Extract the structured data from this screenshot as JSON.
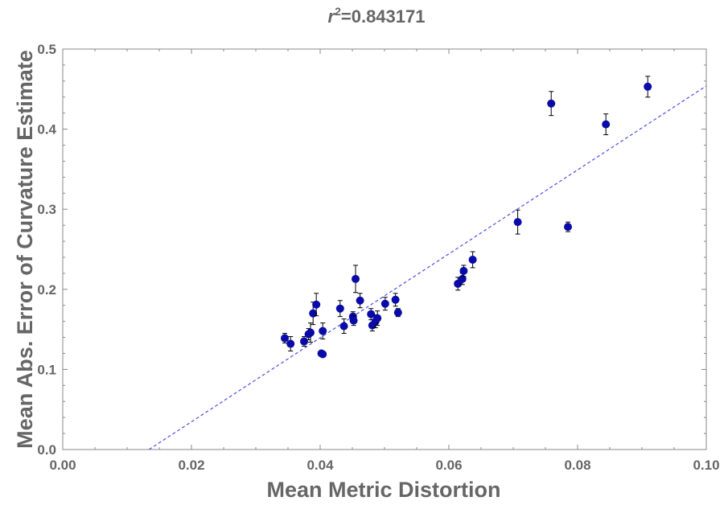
{
  "chart_data": {
    "type": "scatter",
    "title": {
      "r_symbol": "r",
      "exponent": "2",
      "value_text": "=0.843171"
    },
    "xlabel": "Mean Metric Distortion",
    "ylabel": "Mean Abs. Error of Curvature Estimate",
    "xlim": [
      0.0,
      0.1
    ],
    "ylim": [
      0.0,
      0.5
    ],
    "x_ticks": [
      {
        "value": 0.0,
        "label": "0.00"
      },
      {
        "value": 0.02,
        "label": "0.02"
      },
      {
        "value": 0.04,
        "label": "0.04"
      },
      {
        "value": 0.06,
        "label": "0.06"
      },
      {
        "value": 0.08,
        "label": "0.08"
      },
      {
        "value": 0.1,
        "label": "0.10"
      }
    ],
    "y_ticks": [
      {
        "value": 0.0,
        "label": "0.0"
      },
      {
        "value": 0.1,
        "label": "0.1"
      },
      {
        "value": 0.2,
        "label": "0.2"
      },
      {
        "value": 0.3,
        "label": "0.3"
      },
      {
        "value": 0.4,
        "label": "0.4"
      },
      {
        "value": 0.5,
        "label": "0.5"
      }
    ],
    "points": [
      {
        "x": 0.0345,
        "y": 0.139,
        "err": 0.006
      },
      {
        "x": 0.0354,
        "y": 0.132,
        "err": 0.009
      },
      {
        "x": 0.0375,
        "y": 0.135,
        "err": 0.006
      },
      {
        "x": 0.0382,
        "y": 0.144,
        "err": 0.007
      },
      {
        "x": 0.0385,
        "y": 0.146,
        "err": 0.012
      },
      {
        "x": 0.0389,
        "y": 0.17,
        "err": 0.014
      },
      {
        "x": 0.0394,
        "y": 0.181,
        "err": 0.014
      },
      {
        "x": 0.0402,
        "y": 0.12,
        "err": 0.002
      },
      {
        "x": 0.0404,
        "y": 0.119,
        "err": 0.002
      },
      {
        "x": 0.0404,
        "y": 0.148,
        "err": 0.01
      },
      {
        "x": 0.0431,
        "y": 0.176,
        "err": 0.01
      },
      {
        "x": 0.0437,
        "y": 0.154,
        "err": 0.009
      },
      {
        "x": 0.0451,
        "y": 0.166,
        "err": 0.006
      },
      {
        "x": 0.0452,
        "y": 0.161,
        "err": 0.006
      },
      {
        "x": 0.0455,
        "y": 0.213,
        "err": 0.017
      },
      {
        "x": 0.0462,
        "y": 0.186,
        "err": 0.009
      },
      {
        "x": 0.0479,
        "y": 0.169,
        "err": 0.007
      },
      {
        "x": 0.0481,
        "y": 0.155,
        "err": 0.007
      },
      {
        "x": 0.0486,
        "y": 0.16,
        "err": 0.008
      },
      {
        "x": 0.0489,
        "y": 0.164,
        "err": 0.009
      },
      {
        "x": 0.0501,
        "y": 0.182,
        "err": 0.008
      },
      {
        "x": 0.0517,
        "y": 0.187,
        "err": 0.008
      },
      {
        "x": 0.0521,
        "y": 0.171,
        "err": 0.005
      },
      {
        "x": 0.0614,
        "y": 0.207,
        "err": 0.008
      },
      {
        "x": 0.0621,
        "y": 0.213,
        "err": 0.007
      },
      {
        "x": 0.0623,
        "y": 0.223,
        "err": 0.007
      },
      {
        "x": 0.0637,
        "y": 0.237,
        "err": 0.01
      },
      {
        "x": 0.0707,
        "y": 0.284,
        "err": 0.015
      },
      {
        "x": 0.0759,
        "y": 0.432,
        "err": 0.015
      },
      {
        "x": 0.0785,
        "y": 0.278,
        "err": 0.006
      },
      {
        "x": 0.0844,
        "y": 0.406,
        "err": 0.013
      },
      {
        "x": 0.0909,
        "y": 0.453,
        "err": 0.013
      }
    ],
    "fit_line": {
      "x1": 0.0134,
      "y1": 0.0,
      "x2": 0.1,
      "y2": 0.454,
      "style": "dashed"
    },
    "colors": {
      "point": "#0a0aa8",
      "errorbar": "#000000",
      "fit": "#5a5ae6",
      "frame": "#888888",
      "text": "#666666"
    }
  }
}
